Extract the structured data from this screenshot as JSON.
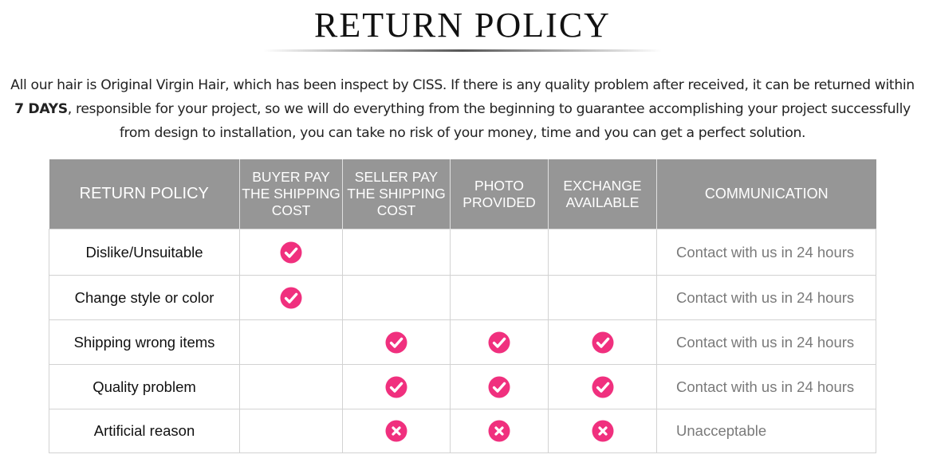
{
  "title": "RETURN POLICY",
  "intro": {
    "text_before": "All our hair is Original Virgin Hair, which has been inspect by CISS. If there is any quality problem after received, it can be returned within ",
    "bold": "7 DAYS",
    "text_after": ", responsible for your project, so we will do everything from the beginning to guarantee accomplishing your project successfully from design to installation, you can take no risk of your money, time and you can get a perfect solution."
  },
  "colors": {
    "header_bg": "#969696",
    "mark_pink": "#f0307e"
  },
  "table": {
    "headers": {
      "policy": "RETURN POLICY",
      "buyer_pay": "BUYER PAY THE SHIPPING COST",
      "seller_pay": "SELLER PAY THE SHIPPING COST",
      "photo": "PHOTO PROVIDED",
      "exchange": "EXCHANGE AVAILABLE",
      "communication": "COMMUNICATION"
    },
    "rows": [
      {
        "reason": "Dislike/Unsuitable",
        "buyer_pay": "check-icon",
        "seller_pay": "",
        "photo": "",
        "exchange": "",
        "communication": "Contact with us in 24 hours"
      },
      {
        "reason": "Change style or color",
        "buyer_pay": "check-icon",
        "seller_pay": "",
        "photo": "",
        "exchange": "",
        "communication": "Contact with us in 24 hours"
      },
      {
        "reason": "Shipping wrong items",
        "buyer_pay": "",
        "seller_pay": "check-icon",
        "photo": "check-icon",
        "exchange": "check-icon",
        "communication": "Contact with us in 24 hours"
      },
      {
        "reason": "Quality problem",
        "buyer_pay": "",
        "seller_pay": "check-icon",
        "photo": "check-icon",
        "exchange": "check-icon",
        "communication": "Contact with us in 24 hours"
      },
      {
        "reason": "Artificial reason",
        "buyer_pay": "",
        "seller_pay": "cross-icon",
        "photo": "cross-icon",
        "exchange": "cross-icon",
        "communication": "Unacceptable"
      }
    ]
  }
}
